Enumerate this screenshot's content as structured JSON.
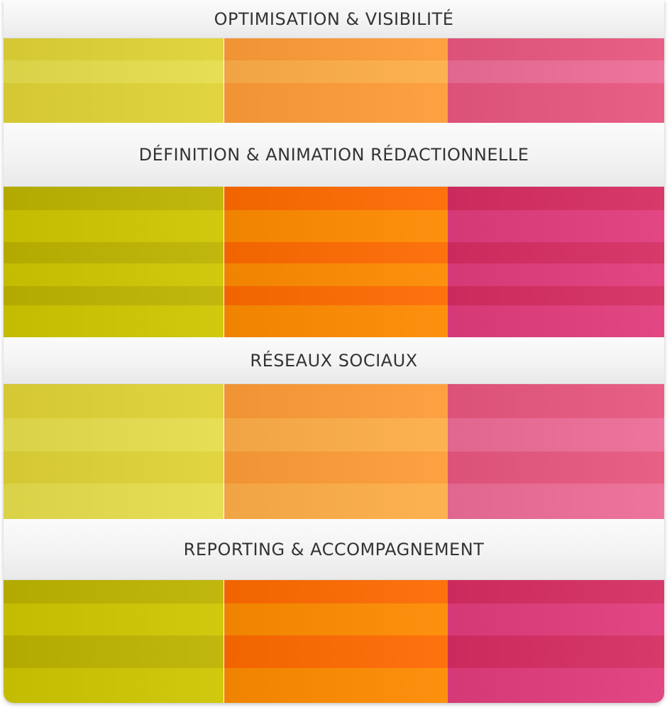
{
  "sections": [
    {
      "title": "OPTIMISATION & VISIBILITÉ",
      "palette": {
        "green": [
          "#dfd236",
          "#e5dd4b"
        ],
        "orange": [
          "#fd9b37",
          "#fdad47"
        ],
        "pink": [
          "#e7567f",
          "#ec6c96"
        ]
      }
    },
    {
      "title": "DÉFINITION & ANIMATION RÉDACTIONNELLE",
      "palette": {
        "green": [
          "#bcb300",
          "#cdc600"
        ],
        "orange": [
          "#fd6a00",
          "#fd8a00"
        ],
        "pink": [
          "#d52d61",
          "#e03c7c"
        ]
      }
    },
    {
      "title": "RÉSEAUX SOCIAUX",
      "palette": {
        "green": [
          "#dfd236",
          "#e5dd4b"
        ],
        "orange": [
          "#fd9b37",
          "#fdad47"
        ],
        "pink": [
          "#e7567f",
          "#ec6c96"
        ]
      }
    },
    {
      "title": "REPORTING & ACCOMPAGNEMENT",
      "palette": {
        "green": [
          "#bcb300",
          "#cdc600"
        ],
        "orange": [
          "#fd6a00",
          "#fd8a00"
        ],
        "pink": [
          "#d52d61",
          "#e03c7c"
        ]
      }
    }
  ]
}
